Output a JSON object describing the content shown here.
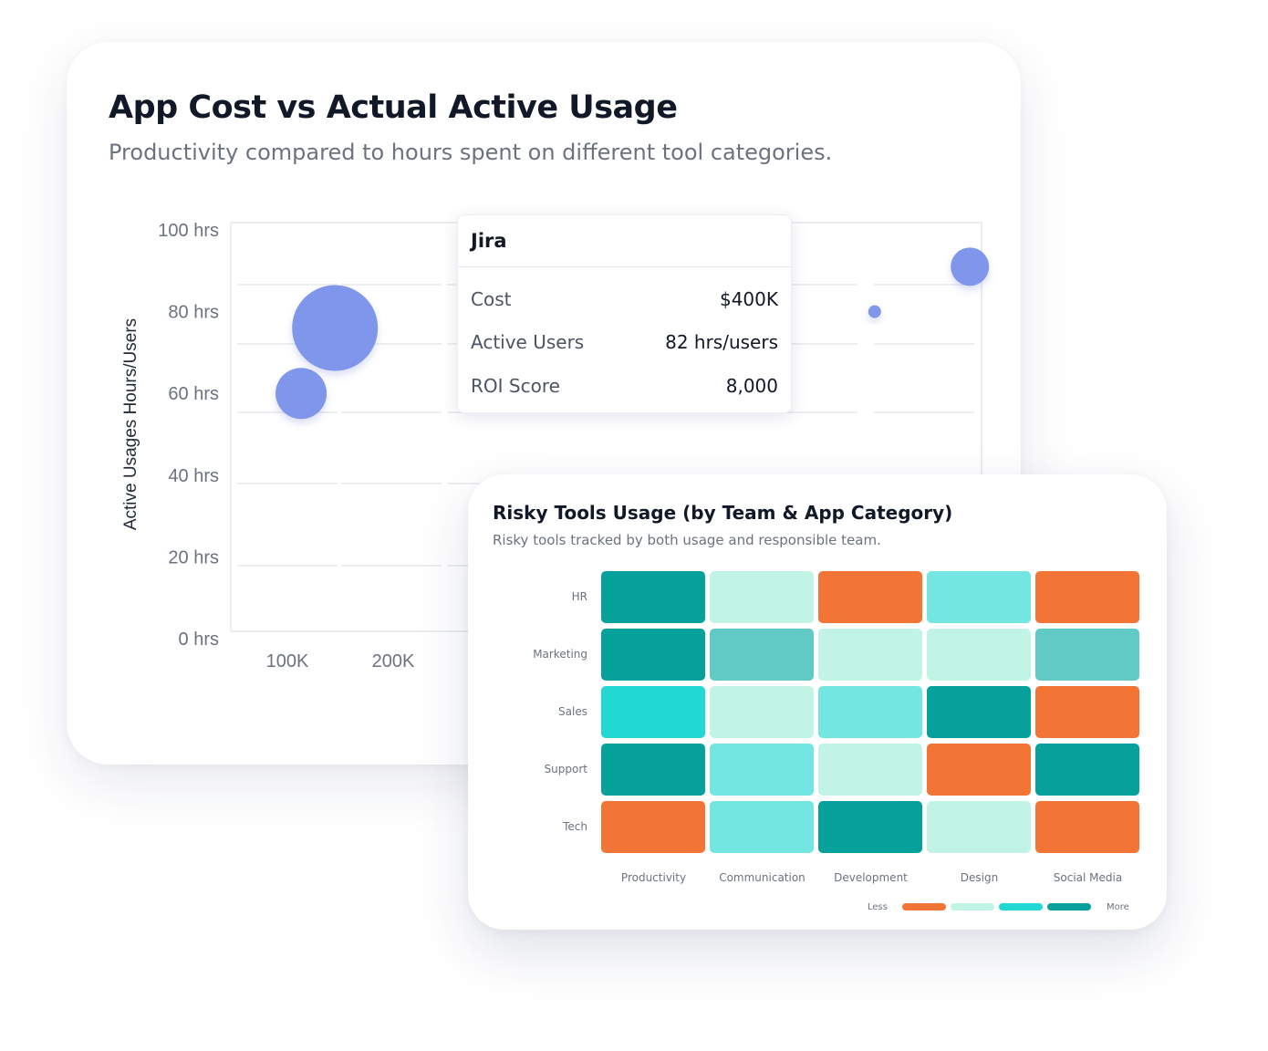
{
  "bubble_card": {
    "title": "App Cost vs Actual Active Usage",
    "subtitle": "Productivity compared to hours spent on different tool categories."
  },
  "tooltip": {
    "app": "Jira",
    "rows": [
      {
        "label": "Cost",
        "value": "$400K"
      },
      {
        "label": "Active Users",
        "value": "82 hrs/users"
      },
      {
        "label": "ROI Score",
        "value": "8,000"
      }
    ]
  },
  "heatmap_card": {
    "title": "Risky Tools Usage (by Team & App Category)",
    "subtitle": "Risky tools tracked by both usage and responsible team."
  },
  "chart_data": [
    {
      "type": "scatter",
      "variant": "bubble",
      "ylabel": "Active Usages Hours/Users",
      "y_ticks": [
        "0 hrs",
        "20 hrs",
        "40 hrs",
        "60 hrs",
        "80 hrs",
        "100 hrs"
      ],
      "x_ticks": [
        "100K",
        "200K"
      ],
      "ylim": [
        0,
        100
      ],
      "color": "#7f96eb",
      "points": [
        {
          "x": 145,
          "y": 76,
          "size": 47
        },
        {
          "x": 113,
          "y": 60,
          "size": 28
        },
        {
          "x": 655,
          "y": 80,
          "size": 7
        },
        {
          "x": 745,
          "y": 91,
          "size": 21
        }
      ]
    },
    {
      "type": "heatmap",
      "rows": [
        "HR",
        "Marketing",
        "Sales",
        "Support",
        "Tech"
      ],
      "columns": [
        "Productivity",
        "Communication",
        "Development",
        "Design",
        "Social Media"
      ],
      "values": [
        [
          4,
          1,
          0,
          2,
          0
        ],
        [
          4,
          3,
          1,
          1,
          3
        ],
        [
          2.5,
          1,
          2,
          4,
          0
        ],
        [
          4,
          2,
          1,
          0,
          4
        ],
        [
          0,
          2,
          4,
          1,
          0
        ]
      ],
      "legend": {
        "less": "Less",
        "more": "More"
      },
      "colors": {
        "0": "#f27535",
        "1": "#c2f4e6",
        "2": "#73e6e2",
        "2.5": "#21d8d2",
        "3": "#61cac5",
        "4": "#06a19b"
      },
      "legend_colors": [
        "#f27535",
        "#c2f4e6",
        "#21d8d2",
        "#06a19b"
      ]
    }
  ]
}
